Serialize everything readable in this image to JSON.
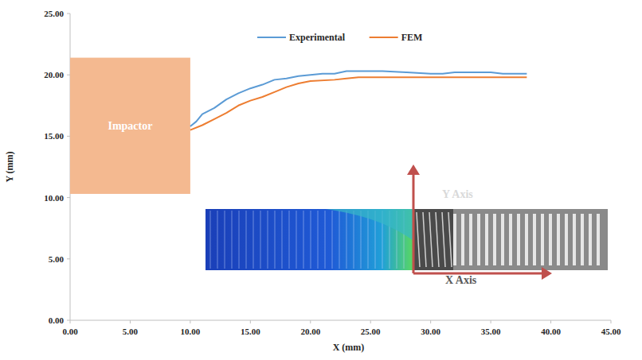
{
  "chart_data": {
    "type": "line",
    "xlabel": "X (mm)",
    "ylabel": "Y (mm)",
    "xlim": [
      0,
      45
    ],
    "ylim": [
      0,
      25
    ],
    "xticks": [
      {
        "value": 0,
        "label": "0.00"
      },
      {
        "value": 5,
        "label": "5.00"
      },
      {
        "value": 10,
        "label": "10.00"
      },
      {
        "value": 15,
        "label": "15.00"
      },
      {
        "value": 20,
        "label": "20.00"
      },
      {
        "value": 25,
        "label": "25.00"
      },
      {
        "value": 30,
        "label": "30.00"
      },
      {
        "value": 35,
        "label": "35.00"
      },
      {
        "value": 40,
        "label": "40.00"
      },
      {
        "value": 45,
        "label": "45.00"
      }
    ],
    "yticks": [
      {
        "value": 0,
        "label": "0.00"
      },
      {
        "value": 5,
        "label": "5.00"
      },
      {
        "value": 10,
        "label": "10.00"
      },
      {
        "value": 15,
        "label": "15.00"
      },
      {
        "value": 20,
        "label": "20.00"
      },
      {
        "value": 25,
        "label": "25.00"
      }
    ],
    "grid": false,
    "legend": "top",
    "series": [
      {
        "name": "Experimental",
        "color": "#5b9bd5",
        "x": [
          10,
          10.5,
          11,
          12,
          13,
          14,
          15,
          16,
          17,
          18,
          19,
          20,
          21,
          22,
          23,
          24,
          25,
          26,
          28,
          30,
          31,
          32,
          34,
          35,
          36,
          38
        ],
        "values": [
          15.8,
          16.2,
          16.8,
          17.3,
          18.0,
          18.5,
          18.9,
          19.2,
          19.6,
          19.7,
          19.9,
          20.0,
          20.1,
          20.1,
          20.3,
          20.3,
          20.3,
          20.3,
          20.2,
          20.1,
          20.1,
          20.2,
          20.2,
          20.2,
          20.1,
          20.1
        ]
      },
      {
        "name": "FEM",
        "color": "#ed7d31",
        "x": [
          10,
          11,
          12,
          13,
          14,
          15,
          16,
          17,
          18,
          19,
          20,
          22,
          23,
          24,
          25,
          30,
          35,
          38
        ],
        "values": [
          15.5,
          15.9,
          16.4,
          16.9,
          17.5,
          17.9,
          18.2,
          18.6,
          19.0,
          19.3,
          19.5,
          19.6,
          19.7,
          19.8,
          19.8,
          19.8,
          19.8,
          19.8
        ]
      }
    ],
    "annotations": [
      {
        "text": "Impactor",
        "x": [
          0,
          10
        ],
        "y": [
          10.3,
          21.4
        ],
        "color": "#f4b990"
      },
      {
        "text": "Y Axis"
      },
      {
        "text": "X Axis"
      }
    ]
  }
}
